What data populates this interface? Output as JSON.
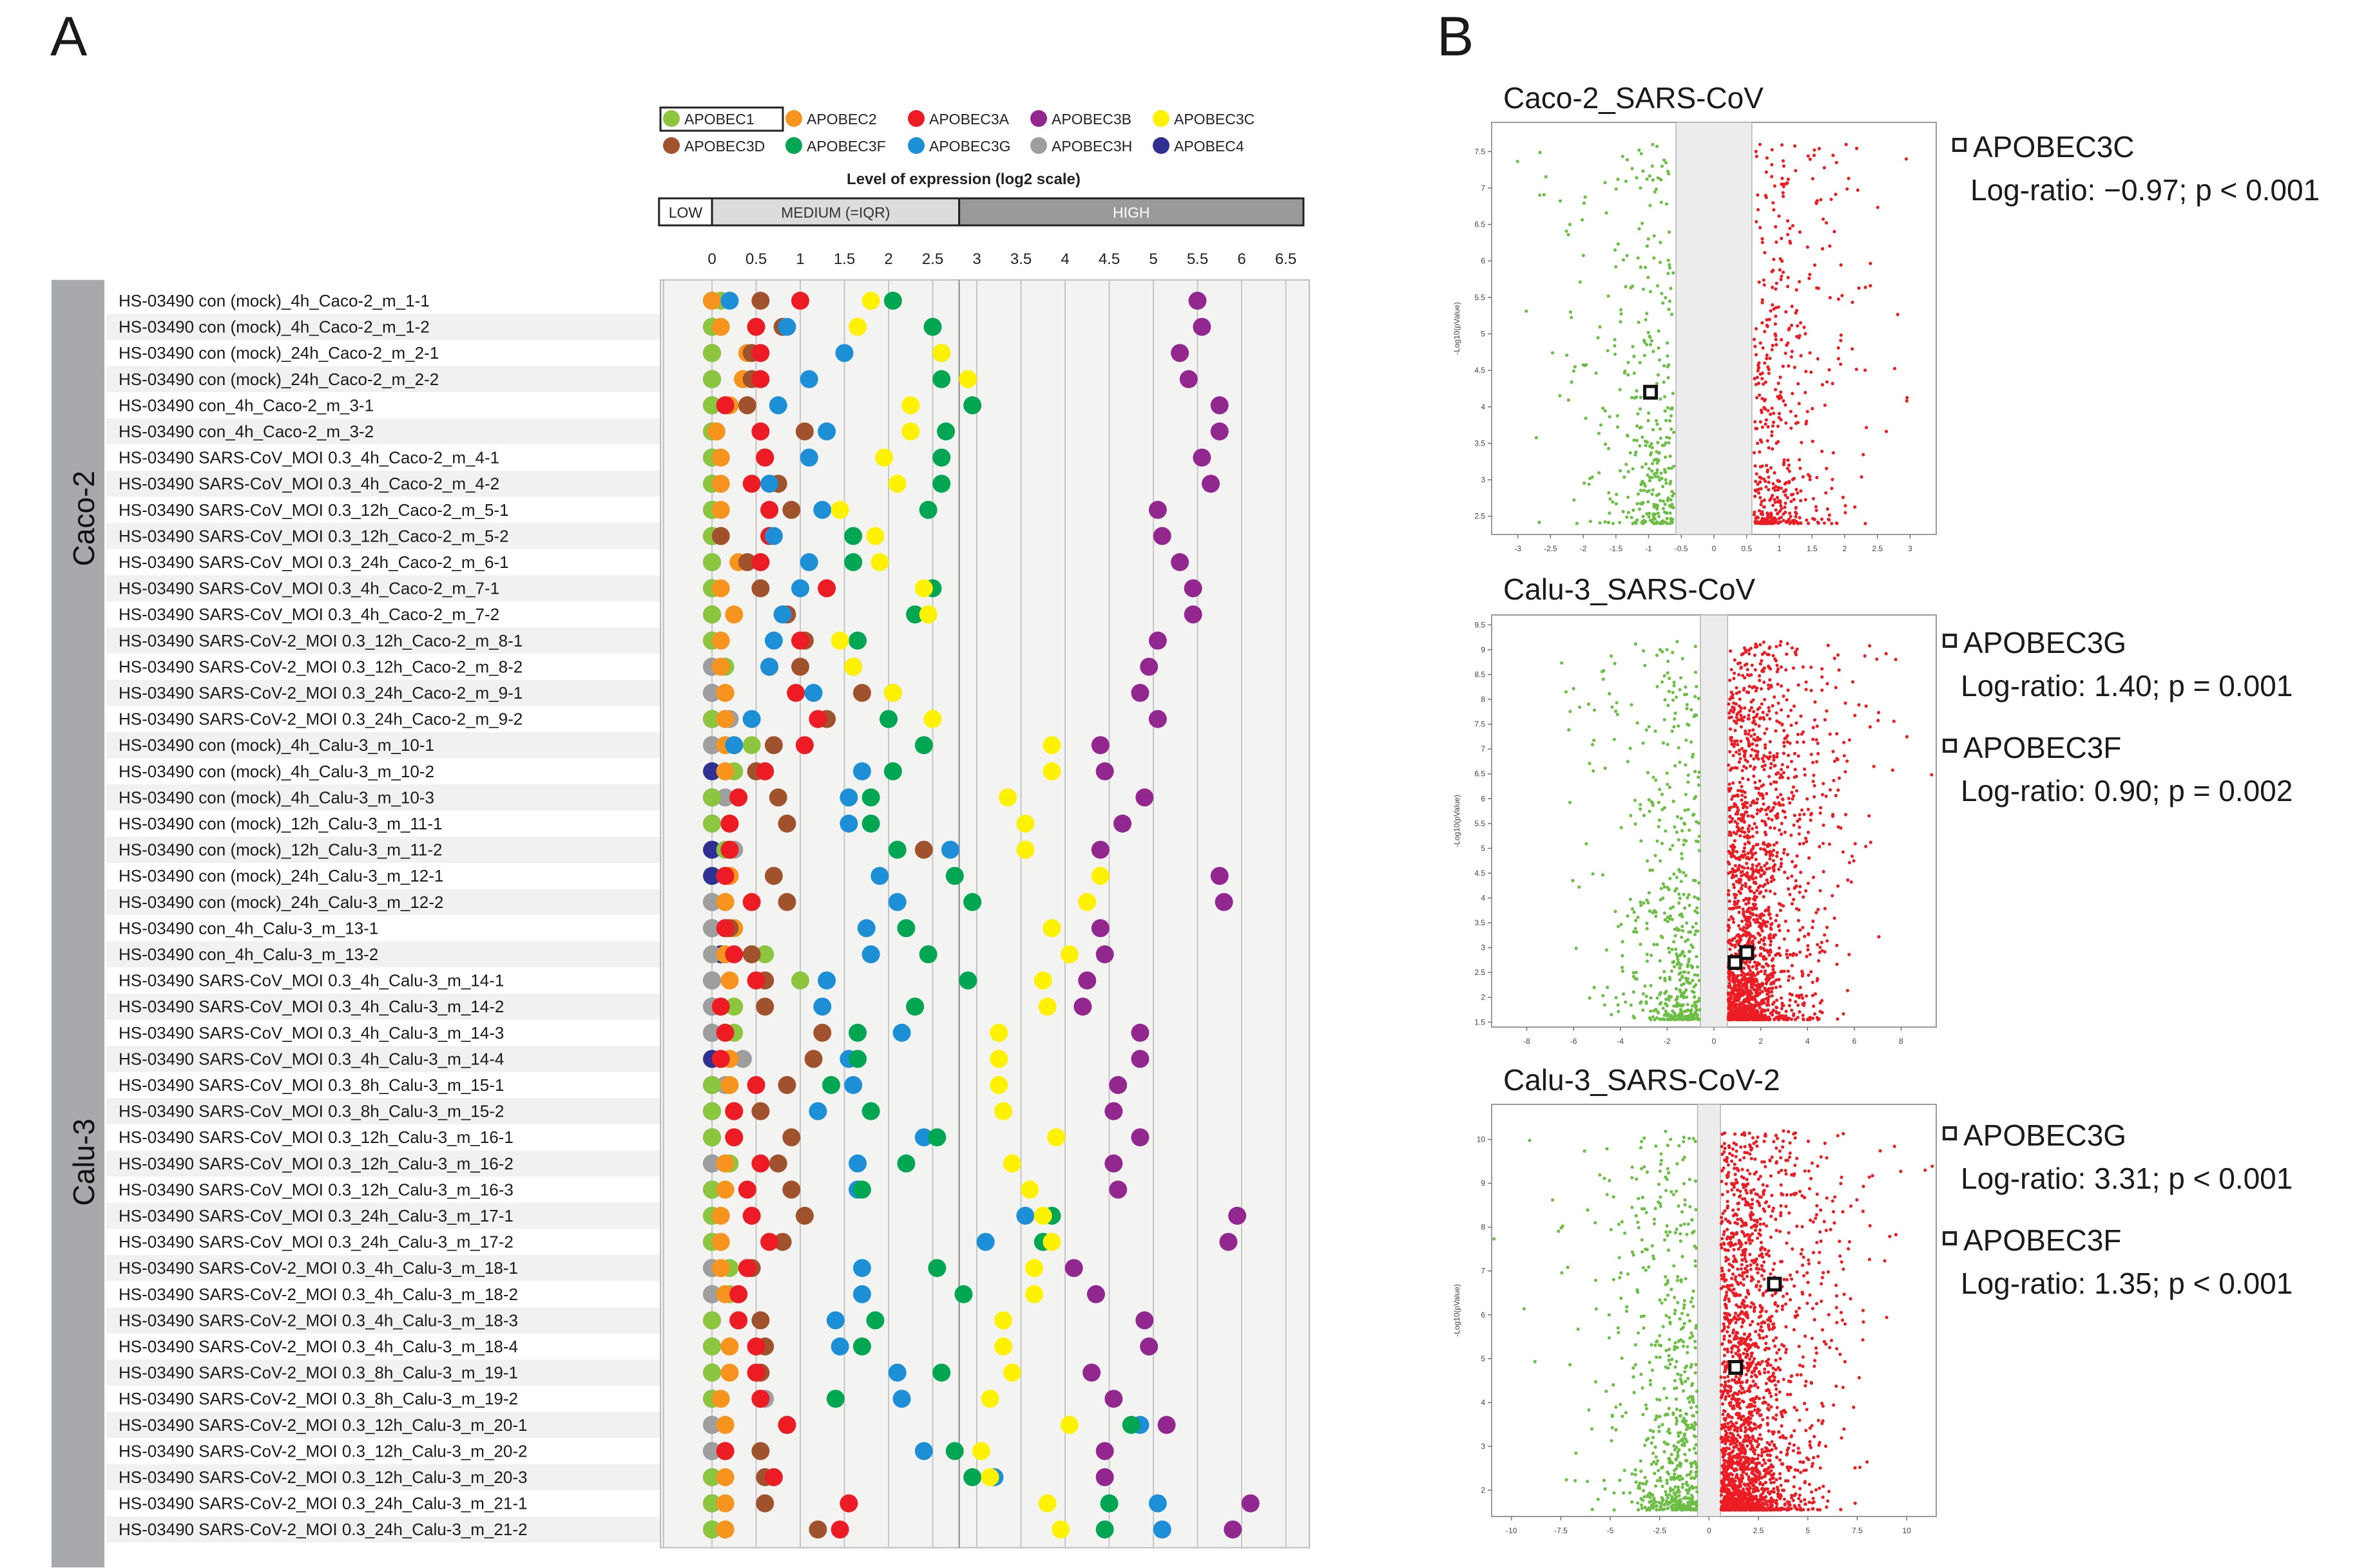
{
  "panels": {
    "a": "A",
    "b": "B"
  },
  "chart_data": [
    {
      "type": "scatter",
      "subtype": "dot-plot",
      "legend": [
        {
          "name": "APOBEC1",
          "color": "#8cc63f"
        },
        {
          "name": "APOBEC2",
          "color": "#f7941d"
        },
        {
          "name": "APOBEC3A",
          "color": "#ed1c24"
        },
        {
          "name": "APOBEC3B",
          "color": "#92278f"
        },
        {
          "name": "APOBEC3C",
          "color": "#fff200"
        },
        {
          "name": "APOBEC3D",
          "color": "#a0522d"
        },
        {
          "name": "APOBEC3F",
          "color": "#00a651"
        },
        {
          "name": "APOBEC3G",
          "color": "#1c8fd6"
        },
        {
          "name": "APOBEC3H",
          "color": "#9e9e9e"
        },
        {
          "name": "APOBEC4",
          "color": "#2e3192"
        }
      ],
      "axis_title": "Level of expression (log2 scale)",
      "bands": [
        {
          "label": "LOW",
          "from": -0.6,
          "to": 0
        },
        {
          "label": "MEDIUM (=IQR)",
          "from": 0,
          "to": 2.8
        },
        {
          "label": "HIGH",
          "from": 2.8,
          "to": 6.7
        }
      ],
      "xticks": [
        "0",
        "0.5",
        "1",
        "1.5",
        "2",
        "2.5",
        "3",
        "3.5",
        "4",
        "4.5",
        "5",
        "5.5",
        "6",
        "6.5"
      ],
      "xlim": [
        -0.6,
        6.7
      ],
      "groups": [
        {
          "name": "Caco-2",
          "start": 0,
          "end": 17
        },
        {
          "name": "Calu-3",
          "start": 18,
          "end": 48
        }
      ],
      "samples": [
        {
          "name": "HS-03490  con (mock)_4h_Caco-2_m_1-1",
          "v": [
            0.1,
            0,
            1,
            5.5,
            1.8,
            0.55,
            2.05,
            0.2,
            0,
            0
          ]
        },
        {
          "name": "HS-03490  con (mock)_4h_Caco-2_m_1-2",
          "v": [
            0,
            0.1,
            0.5,
            5.55,
            1.65,
            0.8,
            2.5,
            0.85,
            0,
            0
          ]
        },
        {
          "name": "HS-03490  con (mock)_24h_Caco-2_m_2-1",
          "v": [
            0,
            0.4,
            0.55,
            5.3,
            2.6,
            0.45,
            2.6,
            1.5,
            0,
            0
          ]
        },
        {
          "name": "HS-03490  con (mock)_24h_Caco-2_m_2-2",
          "v": [
            0,
            0.35,
            0.55,
            5.4,
            2.9,
            0.45,
            2.6,
            1.1,
            0,
            0
          ]
        },
        {
          "name": "HS-03490  con_4h_Caco-2_m_3-1",
          "v": [
            0,
            0.2,
            0.15,
            5.75,
            2.25,
            0.4,
            2.95,
            0.75,
            0,
            0
          ]
        },
        {
          "name": "HS-03490  con_4h_Caco-2_m_3-2",
          "v": [
            0,
            0.05,
            0.55,
            5.75,
            2.25,
            1.05,
            2.65,
            1.3,
            0,
            0
          ]
        },
        {
          "name": "HS-03490  SARS-CoV_MOI 0.3_4h_Caco-2_m_4-1",
          "v": [
            0,
            0.1,
            0.6,
            5.55,
            1.95,
            0.6,
            2.6,
            1.1,
            0,
            0
          ]
        },
        {
          "name": "HS-03490  SARS-CoV_MOI 0.3_4h_Caco-2_m_4-2",
          "v": [
            0,
            0.1,
            0.45,
            5.65,
            2.1,
            0.75,
            2.6,
            0.65,
            0,
            0
          ]
        },
        {
          "name": "HS-03490  SARS-CoV_MOI 0.3_12h_Caco-2_m_5-1",
          "v": [
            0,
            0.1,
            0.65,
            5.05,
            1.45,
            0.9,
            2.45,
            1.25,
            0,
            0
          ]
        },
        {
          "name": "HS-03490  SARS-CoV_MOI 0.3_12h_Caco-2_m_5-2",
          "v": [
            0,
            0.1,
            0.65,
            5.1,
            1.85,
            0.1,
            1.6,
            0.7,
            0,
            0
          ]
        },
        {
          "name": "HS-03490  SARS-CoV_MOI 0.3_24h_Caco-2_m_6-1",
          "v": [
            0,
            0.3,
            0.55,
            5.3,
            1.9,
            0.4,
            1.6,
            1.1,
            0,
            0
          ]
        },
        {
          "name": "HS-03490  SARS-CoV_MOI 0.3_4h_Caco-2_m_7-1",
          "v": [
            0,
            0.1,
            1.3,
            5.45,
            2.4,
            0.55,
            2.5,
            1,
            0,
            0
          ]
        },
        {
          "name": "HS-03490  SARS-CoV_MOI 0.3_4h_Caco-2_m_7-2",
          "v": [
            0,
            0.25,
            0.8,
            5.45,
            2.45,
            0.85,
            2.3,
            0.8,
            0,
            0
          ]
        },
        {
          "name": "HS-03490  SARS-CoV-2_MOI 0.3_12h_Caco-2_m_8-1",
          "v": [
            0,
            0.1,
            1,
            5.05,
            1.45,
            1.05,
            1.65,
            0.7,
            0,
            0
          ]
        },
        {
          "name": "HS-03490  SARS-CoV-2_MOI 0.3_12h_Caco-2_m_8-2",
          "v": [
            0.15,
            0.1,
            0.65,
            4.95,
            1.6,
            1,
            1.6,
            0.65,
            0,
            0
          ]
        },
        {
          "name": "HS-03490  SARS-CoV-2_MOI 0.3_24h_Caco-2_m_9-1",
          "v": [
            0.15,
            0.15,
            0.95,
            4.85,
            2.05,
            1.7,
            2.05,
            1.15,
            0,
            0
          ]
        },
        {
          "name": "HS-03490  SARS-CoV-2_MOI 0.3_24h_Caco-2_m_9-2",
          "v": [
            0,
            0.15,
            1.2,
            5.05,
            2.5,
            1.3,
            2,
            0.45,
            0.2,
            0
          ]
        },
        {
          "name": "HS-03490  con (mock)_4h_Calu-3_m_10-1",
          "v": [
            0.45,
            0.15,
            1.05,
            4.4,
            3.85,
            0.7,
            2.4,
            0.25,
            0,
            0
          ]
        },
        {
          "name": "HS-03490  con (mock)_4h_Calu-3_m_10-2",
          "v": [
            0.25,
            0.15,
            0.6,
            4.45,
            3.85,
            0.5,
            2.05,
            1.7,
            0.15,
            0
          ]
        },
        {
          "name": "HS-03490  con (mock)_4h_Calu-3_m_10-3",
          "v": [
            0,
            0.3,
            0.3,
            4.9,
            3.35,
            0.75,
            1.8,
            1.55,
            0.15,
            0
          ]
        },
        {
          "name": "HS-03490  con (mock)_12h_Calu-3_m_11-1",
          "v": [
            0,
            0.2,
            0.2,
            4.65,
            3.55,
            0.85,
            1.8,
            1.55,
            0,
            0
          ]
        },
        {
          "name": "HS-03490  con (mock)_12h_Calu-3_m_11-2",
          "v": [
            0.15,
            0.2,
            0.2,
            4.4,
            3.55,
            2.4,
            2.1,
            2.7,
            0.25,
            0
          ]
        },
        {
          "name": "HS-03490  con (mock)_24h_Calu-3_m_12-1",
          "v": [
            0.15,
            0.2,
            0.15,
            5.75,
            4.4,
            0.7,
            2.75,
            1.9,
            0.2,
            0
          ]
        },
        {
          "name": "HS-03490  con (mock)_24h_Calu-3_m_12-2",
          "v": [
            0.15,
            0.15,
            0.45,
            5.8,
            4.25,
            0.85,
            2.95,
            2.1,
            0,
            0
          ]
        },
        {
          "name": "HS-03490  con_4h_Calu-3_m_13-1",
          "v": [
            0.15,
            0.25,
            0.15,
            4.4,
            3.85,
            0.2,
            2.2,
            1.75,
            0,
            0
          ]
        },
        {
          "name": "HS-03490  con_4h_Calu-3_m_13-2",
          "v": [
            0.6,
            0.15,
            0.25,
            4.45,
            4.05,
            0.45,
            2.45,
            1.8,
            0,
            0.1
          ]
        },
        {
          "name": "HS-03490  SARS-CoV_MOI 0.3_4h_Calu-3_m_14-1",
          "v": [
            1,
            0.2,
            0.5,
            4.25,
            3.75,
            0.6,
            2.9,
            1.3,
            0,
            0
          ]
        },
        {
          "name": "HS-03490  SARS-CoV_MOI 0.3_4h_Calu-3_m_14-2",
          "v": [
            0.25,
            0.1,
            0.1,
            4.2,
            3.8,
            0.6,
            2.3,
            1.25,
            0,
            0
          ]
        },
        {
          "name": "HS-03490  SARS-CoV_MOI 0.3_4h_Calu-3_m_14-3",
          "v": [
            0.25,
            0.15,
            0.15,
            4.85,
            3.25,
            1.25,
            1.65,
            2.15,
            0,
            0
          ]
        },
        {
          "name": "HS-03490  SARS-CoV_MOI 0.3_4h_Calu-3_m_14-4",
          "v": [
            0.2,
            0.2,
            0.1,
            4.85,
            3.25,
            1.15,
            1.65,
            1.55,
            0.35,
            0
          ]
        },
        {
          "name": "HS-03490  SARS-CoV_MOI 0.3_8h_Calu-3_m_15-1",
          "v": [
            0,
            0.2,
            0.5,
            4.6,
            3.25,
            0.85,
            1.35,
            1.6,
            0.15,
            0
          ]
        },
        {
          "name": "HS-03490  SARS-CoV_MOI 0.3_8h_Calu-3_m_15-2",
          "v": [
            0,
            0.25,
            0.25,
            4.55,
            3.3,
            0.55,
            1.8,
            1.2,
            0,
            0
          ]
        },
        {
          "name": "HS-03490  SARS-CoV_MOI 0.3_12h_Calu-3_m_16-1",
          "v": [
            0,
            0.25,
            0.25,
            4.85,
            3.9,
            0.9,
            2.55,
            2.4,
            0,
            0
          ]
        },
        {
          "name": "HS-03490  SARS-CoV_MOI 0.3_12h_Calu-3_m_16-2",
          "v": [
            0.2,
            0.15,
            0.55,
            4.55,
            3.4,
            0.75,
            2.2,
            1.65,
            0,
            0
          ]
        },
        {
          "name": "HS-03490  SARS-CoV_MOI 0.3_12h_Calu-3_m_16-3",
          "v": [
            0,
            0.15,
            0.4,
            4.6,
            3.6,
            0.9,
            1.7,
            1.65,
            0,
            0
          ]
        },
        {
          "name": "HS-03490  SARS-CoV_MOI 0.3_24h_Calu-3_m_17-1",
          "v": [
            0,
            0.1,
            0.45,
            5.95,
            3.75,
            1.05,
            3.85,
            3.55,
            0,
            0
          ]
        },
        {
          "name": "HS-03490  SARS-CoV_MOI 0.3_24h_Calu-3_m_17-2",
          "v": [
            0,
            0.1,
            0.65,
            5.85,
            3.85,
            0.8,
            3.75,
            3.1,
            0,
            0
          ]
        },
        {
          "name": "HS-03490  SARS-CoV-2_MOI 0.3_4h_Calu-3_m_18-1",
          "v": [
            0.2,
            0.1,
            0.4,
            4.1,
            3.65,
            0.45,
            2.55,
            1.7,
            0,
            0
          ]
        },
        {
          "name": "HS-03490  SARS-CoV-2_MOI 0.3_4h_Calu-3_m_18-2",
          "v": [
            0.2,
            0.15,
            0.3,
            4.35,
            3.65,
            0.3,
            2.85,
            1.7,
            0,
            0
          ]
        },
        {
          "name": "HS-03490  SARS-CoV-2_MOI 0.3_4h_Calu-3_m_18-3",
          "v": [
            0,
            0.3,
            0.3,
            4.9,
            3.3,
            0.55,
            1.85,
            1.4,
            0,
            0
          ]
        },
        {
          "name": "HS-03490  SARS-CoV-2_MOI 0.3_4h_Calu-3_m_18-4",
          "v": [
            0,
            0.2,
            0.5,
            4.95,
            3.3,
            0.6,
            1.7,
            1.45,
            0,
            0
          ]
        },
        {
          "name": "HS-03490  SARS-CoV-2_MOI 0.3_8h_Calu-3_m_19-1",
          "v": [
            0,
            0.2,
            0.5,
            4.3,
            3.4,
            0.55,
            2.6,
            2.1,
            0,
            0
          ]
        },
        {
          "name": "HS-03490  SARS-CoV-2_MOI 0.3_8h_Calu-3_m_19-2",
          "v": [
            0,
            0.1,
            0.55,
            4.55,
            3.15,
            0.55,
            1.4,
            2.15,
            0.6,
            0
          ]
        },
        {
          "name": "HS-03490  SARS-CoV-2_MOI 0.3_12h_Calu-3_m_20-1",
          "v": [
            0.15,
            0.15,
            0.85,
            5.15,
            4.05,
            0.85,
            4.75,
            4.85,
            0,
            0
          ]
        },
        {
          "name": "HS-03490  SARS-CoV-2_MOI 0.3_12h_Calu-3_m_20-2",
          "v": [
            0.15,
            0.15,
            0.15,
            4.45,
            3.05,
            0.55,
            2.75,
            2.4,
            0,
            0
          ]
        },
        {
          "name": "HS-03490  SARS-CoV-2_MOI 0.3_12h_Calu-3_m_20-3",
          "v": [
            0,
            0.15,
            0.7,
            4.45,
            3.15,
            0.6,
            2.95,
            3.2,
            0,
            0
          ]
        },
        {
          "name": "HS-03490  SARS-CoV-2_MOI 0.3_24h_Calu-3_m_21-1",
          "v": [
            0,
            0.15,
            1.55,
            6.1,
            3.8,
            0.6,
            4.5,
            5.05,
            0,
            0
          ]
        },
        {
          "name": "HS-03490  SARS-CoV-2_MOI 0.3_24h_Calu-3_m_21-2",
          "v": [
            0,
            0.15,
            1.45,
            5.9,
            3.95,
            1.2,
            4.45,
            5.1,
            0,
            0
          ]
        }
      ]
    },
    {
      "type": "scatter",
      "title": "Caco-2_SARS-CoV",
      "xlabel": "",
      "ylabel": "-Log10(pValue)",
      "xlim": [
        -3.4,
        3.4
      ],
      "ylim": [
        2.25,
        7.9
      ],
      "xticks": [
        -3,
        -2.5,
        -2,
        -1.5,
        -1,
        -0.5,
        0,
        0.5,
        1,
        1.5,
        2,
        2.5,
        3
      ],
      "yticks": [
        2.5,
        3,
        3.5,
        4,
        4.5,
        5,
        5.5,
        6,
        6.5,
        7,
        7.5
      ],
      "threshold": 0.58,
      "n_down": 380,
      "n_up": 500,
      "highlights": [
        {
          "label": "APOBEC3C",
          "x": -0.97,
          "y": 4.2
        }
      ],
      "annotations": [
        {
          "gene": "APOBEC3C",
          "text": "Log-ratio: −0.97; p < 0.001"
        }
      ]
    },
    {
      "type": "scatter",
      "title": "Calu-3_SARS-CoV",
      "xlabel": "",
      "ylabel": "-Log10(pValue)",
      "xlim": [
        -9.5,
        9.5
      ],
      "ylim": [
        1.4,
        9.7
      ],
      "xticks": [
        -8,
        -6,
        -4,
        -2,
        0,
        2,
        4,
        6,
        8
      ],
      "yticks": [
        1.5,
        2,
        2.5,
        3,
        3.5,
        4,
        4.5,
        5,
        5.5,
        6,
        6.5,
        7,
        7.5,
        8,
        8.5,
        9,
        9.5
      ],
      "threshold": 0.58,
      "n_down": 520,
      "n_up": 1900,
      "highlights": [
        {
          "label": "APOBEC3G",
          "x": 1.4,
          "y": 2.9
        },
        {
          "label": "APOBEC3F",
          "x": 0.9,
          "y": 2.7
        }
      ],
      "annotations": [
        {
          "gene": "APOBEC3G",
          "text": "Log-ratio: 1.40; p = 0.001"
        },
        {
          "gene": "APOBEC3F",
          "text": "Log-ratio: 0.90; p = 0.002"
        }
      ]
    },
    {
      "type": "scatter",
      "title": "Calu-3_SARS-CoV-2",
      "xlabel": "",
      "ylabel": "-Log10(pValue)",
      "xlim": [
        -11,
        11.5
      ],
      "ylim": [
        1.4,
        10.8
      ],
      "xticks": [
        -10,
        -7.5,
        -5,
        -2.5,
        0,
        2.5,
        5,
        7.5,
        10
      ],
      "yticks": [
        2,
        3,
        4,
        5,
        6,
        7,
        8,
        9,
        10
      ],
      "threshold": 0.58,
      "n_down": 650,
      "n_up": 2200,
      "highlights": [
        {
          "label": "APOBEC3G",
          "x": 3.31,
          "y": 6.7
        },
        {
          "label": "APOBEC3F",
          "x": 1.35,
          "y": 4.8
        }
      ],
      "annotations": [
        {
          "gene": "APOBEC3G",
          "text": "Log-ratio: 3.31; p < 0.001"
        },
        {
          "gene": "APOBEC3F",
          "text": "Log-ratio: 1.35; p < 0.001"
        }
      ]
    }
  ]
}
